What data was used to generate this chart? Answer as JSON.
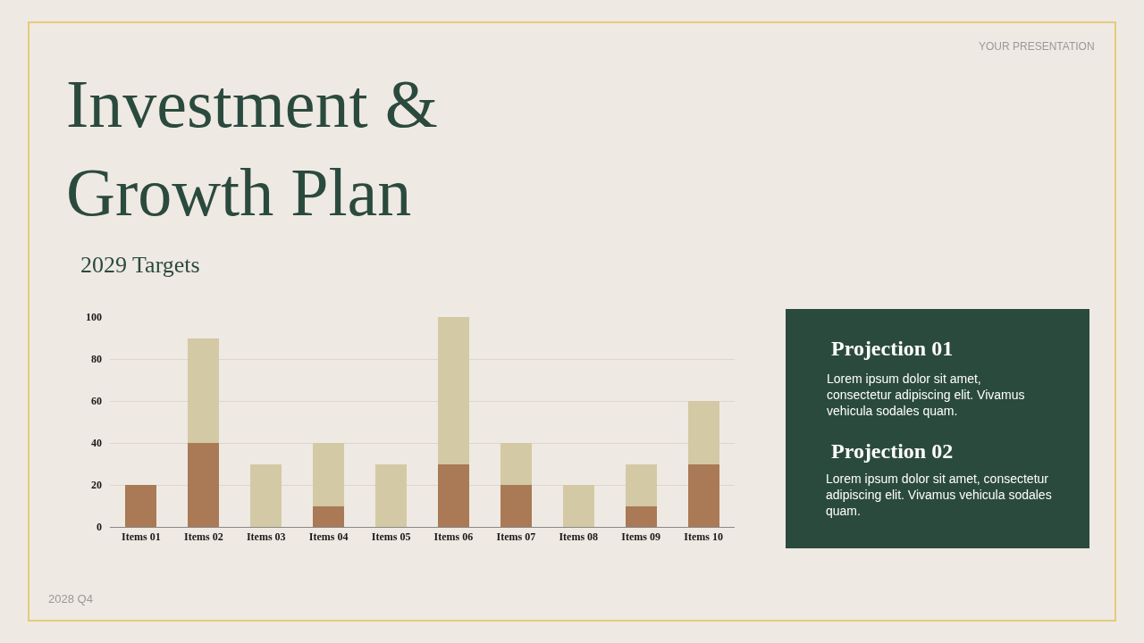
{
  "chart_data": {
    "type": "bar",
    "title": "Investment & Growth Plan",
    "subtitle": "2029 Targets",
    "categories": [
      "Items 01",
      "Items 02",
      "Items 03",
      "Items 04",
      "Items 05",
      "Items 06",
      "Items 07",
      "Items 08",
      "Items 09",
      "Items 10"
    ],
    "stacked": true,
    "series": [
      {
        "color": "#a97a55",
        "values": [
          20,
          40,
          0,
          10,
          0,
          30,
          20,
          0,
          10,
          30
        ]
      },
      {
        "color": "#d3c9a5",
        "values": [
          0,
          50,
          30,
          30,
          30,
          70,
          20,
          20,
          20,
          30
        ]
      }
    ],
    "ylim": [
      0,
      100
    ],
    "yticks": [
      0,
      20,
      40,
      60,
      80,
      100
    ],
    "grid": "y",
    "annotations": [
      "YOUR PRESENTATION",
      "2028 Q4",
      "Projection 01",
      "Lorem ipsum dolor sit amet, consectetur adipiscing elit. Vivamus vehicula sodales quam.",
      "Projection 02",
      "Lorem ipsum dolor sit amet, consectetur adipiscing elit. Vivamus vehicula sodales quam."
    ]
  }
}
